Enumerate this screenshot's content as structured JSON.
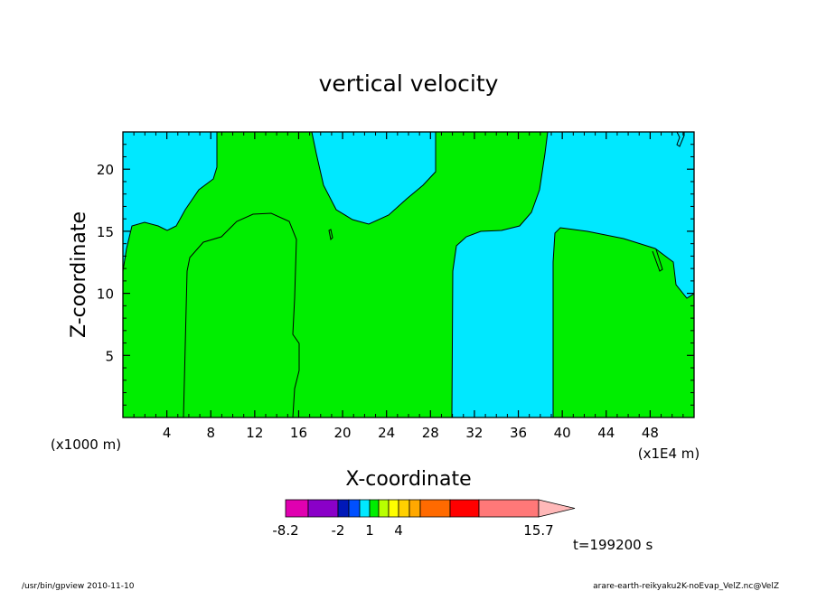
{
  "chart_data": {
    "type": "contour",
    "title": "vertical velocity",
    "xlabel": "X-coordinate",
    "ylabel": "Z-coordinate",
    "x_unit_left": "(x1000 m)",
    "x_unit_right": "(x1E4 m)",
    "xlim": [
      0,
      52
    ],
    "ylim": [
      0,
      23
    ],
    "xticks": [
      4,
      8,
      12,
      16,
      20,
      24,
      28,
      32,
      36,
      40,
      44,
      48
    ],
    "yticks": [
      5,
      10,
      15,
      20
    ],
    "fill_colors": {
      "negative": "#00e8ff",
      "positive": "#00ee00"
    },
    "colorbar": {
      "colors": [
        "#e000b0",
        "#8a00c8",
        "#0018b8",
        "#0050ff",
        "#00e8ff",
        "#00ee00",
        "#b8ff00",
        "#ffff00",
        "#ffd000",
        "#ffa800",
        "#ff6a00",
        "#ff0000",
        "#ff7878",
        "#ffb8b8"
      ],
      "labels": [
        {
          "text": "-8.2",
          "boundary": 0
        },
        {
          "text": "-2",
          "boundary": 2
        },
        {
          "text": "1",
          "boundary": 5
        },
        {
          "text": "4",
          "boundary": 8
        },
        {
          "text": "15.7",
          "boundary": 13
        }
      ]
    },
    "time_label": "t=199200 s"
  },
  "footer": {
    "left": "/usr/bin/gpview  2010-11-10",
    "right": "arare-earth-reikyaku2K-noEvap_VelZ.nc@VelZ"
  }
}
